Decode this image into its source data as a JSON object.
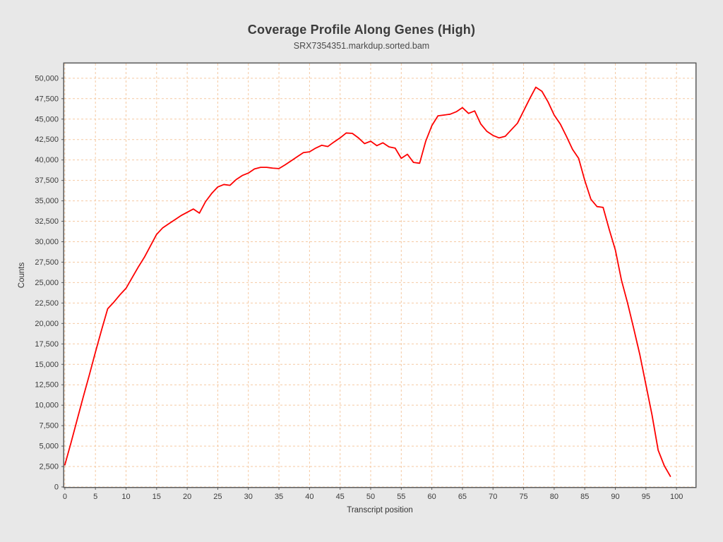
{
  "header": {
    "title": "Coverage Profile Along Genes (High)",
    "subtitle": "SRX7354351.markdup.sorted.bam"
  },
  "chart_data": {
    "type": "line",
    "title": "Coverage Profile Along Genes (High)",
    "subtitle": "SRX7354351.markdup.sorted.bam",
    "xlabel": "Transcript position",
    "ylabel": "Counts",
    "xlim": [
      -0.1,
      103.1
    ],
    "ylim": [
      0,
      51800
    ],
    "x_ticks": [
      0,
      5,
      10,
      15,
      20,
      25,
      30,
      35,
      40,
      45,
      50,
      55,
      60,
      65,
      70,
      75,
      80,
      85,
      90,
      95,
      100
    ],
    "y_ticks": [
      0,
      2500,
      5000,
      7500,
      10000,
      12500,
      15000,
      17500,
      20000,
      22500,
      25000,
      27500,
      30000,
      32500,
      35000,
      37500,
      40000,
      42500,
      45000,
      47500,
      50000
    ],
    "grid": true,
    "legend_position": "none",
    "colors": {
      "line": "#fe0000",
      "grid": "#f5c9a2",
      "plot_background": "#ffffff",
      "page_background": "#e8e8e8",
      "border": "#5c5c5c",
      "text": "#3c3c3c"
    },
    "series": [
      {
        "name": "SRX7354351.markdup.sorted.bam",
        "x": [
          0,
          1,
          2,
          3,
          4,
          5,
          6,
          7,
          8,
          9,
          10,
          11,
          12,
          13,
          14,
          15,
          16,
          17,
          18,
          19,
          20,
          21,
          22,
          23,
          24,
          25,
          26,
          27,
          28,
          29,
          30,
          31,
          32,
          33,
          34,
          35,
          36,
          37,
          38,
          39,
          40,
          41,
          42,
          43,
          44,
          45,
          46,
          47,
          48,
          49,
          50,
          51,
          52,
          53,
          54,
          55,
          56,
          57,
          58,
          59,
          60,
          61,
          62,
          63,
          64,
          65,
          66,
          67,
          68,
          69,
          70,
          71,
          72,
          73,
          74,
          75,
          76,
          77,
          78,
          79,
          80,
          81,
          82,
          83,
          84,
          85,
          86,
          87,
          88,
          89,
          90,
          91,
          92,
          93,
          94,
          95,
          96,
          97,
          98,
          99
        ],
        "y": [
          2700,
          5400,
          8200,
          11000,
          13700,
          16500,
          19200,
          21800,
          22600,
          23500,
          24300,
          25600,
          26900,
          28100,
          29500,
          30900,
          31700,
          32200,
          32700,
          33200,
          33600,
          34000,
          33500,
          34900,
          35900,
          36700,
          37000,
          36900,
          37600,
          38100,
          38400,
          38900,
          39100,
          39100,
          39000,
          38950,
          39400,
          39900,
          40400,
          40900,
          41000,
          41450,
          41800,
          41650,
          42200,
          42700,
          43300,
          43250,
          42700,
          42000,
          42300,
          41750,
          42100,
          41600,
          41450,
          40200,
          40700,
          39700,
          39600,
          42300,
          44200,
          45400,
          45500,
          45600,
          45900,
          46400,
          45700,
          46000,
          44400,
          43500,
          43000,
          42700,
          42900,
          43700,
          44500,
          46000,
          47500,
          48900,
          48400,
          47100,
          45500,
          44400,
          42900,
          41300,
          40200,
          37500,
          35200,
          34300,
          34200,
          31500,
          29000,
          25300,
          22500,
          19400,
          16200,
          12500,
          8800,
          4500,
          2600,
          1300
        ]
      }
    ]
  }
}
